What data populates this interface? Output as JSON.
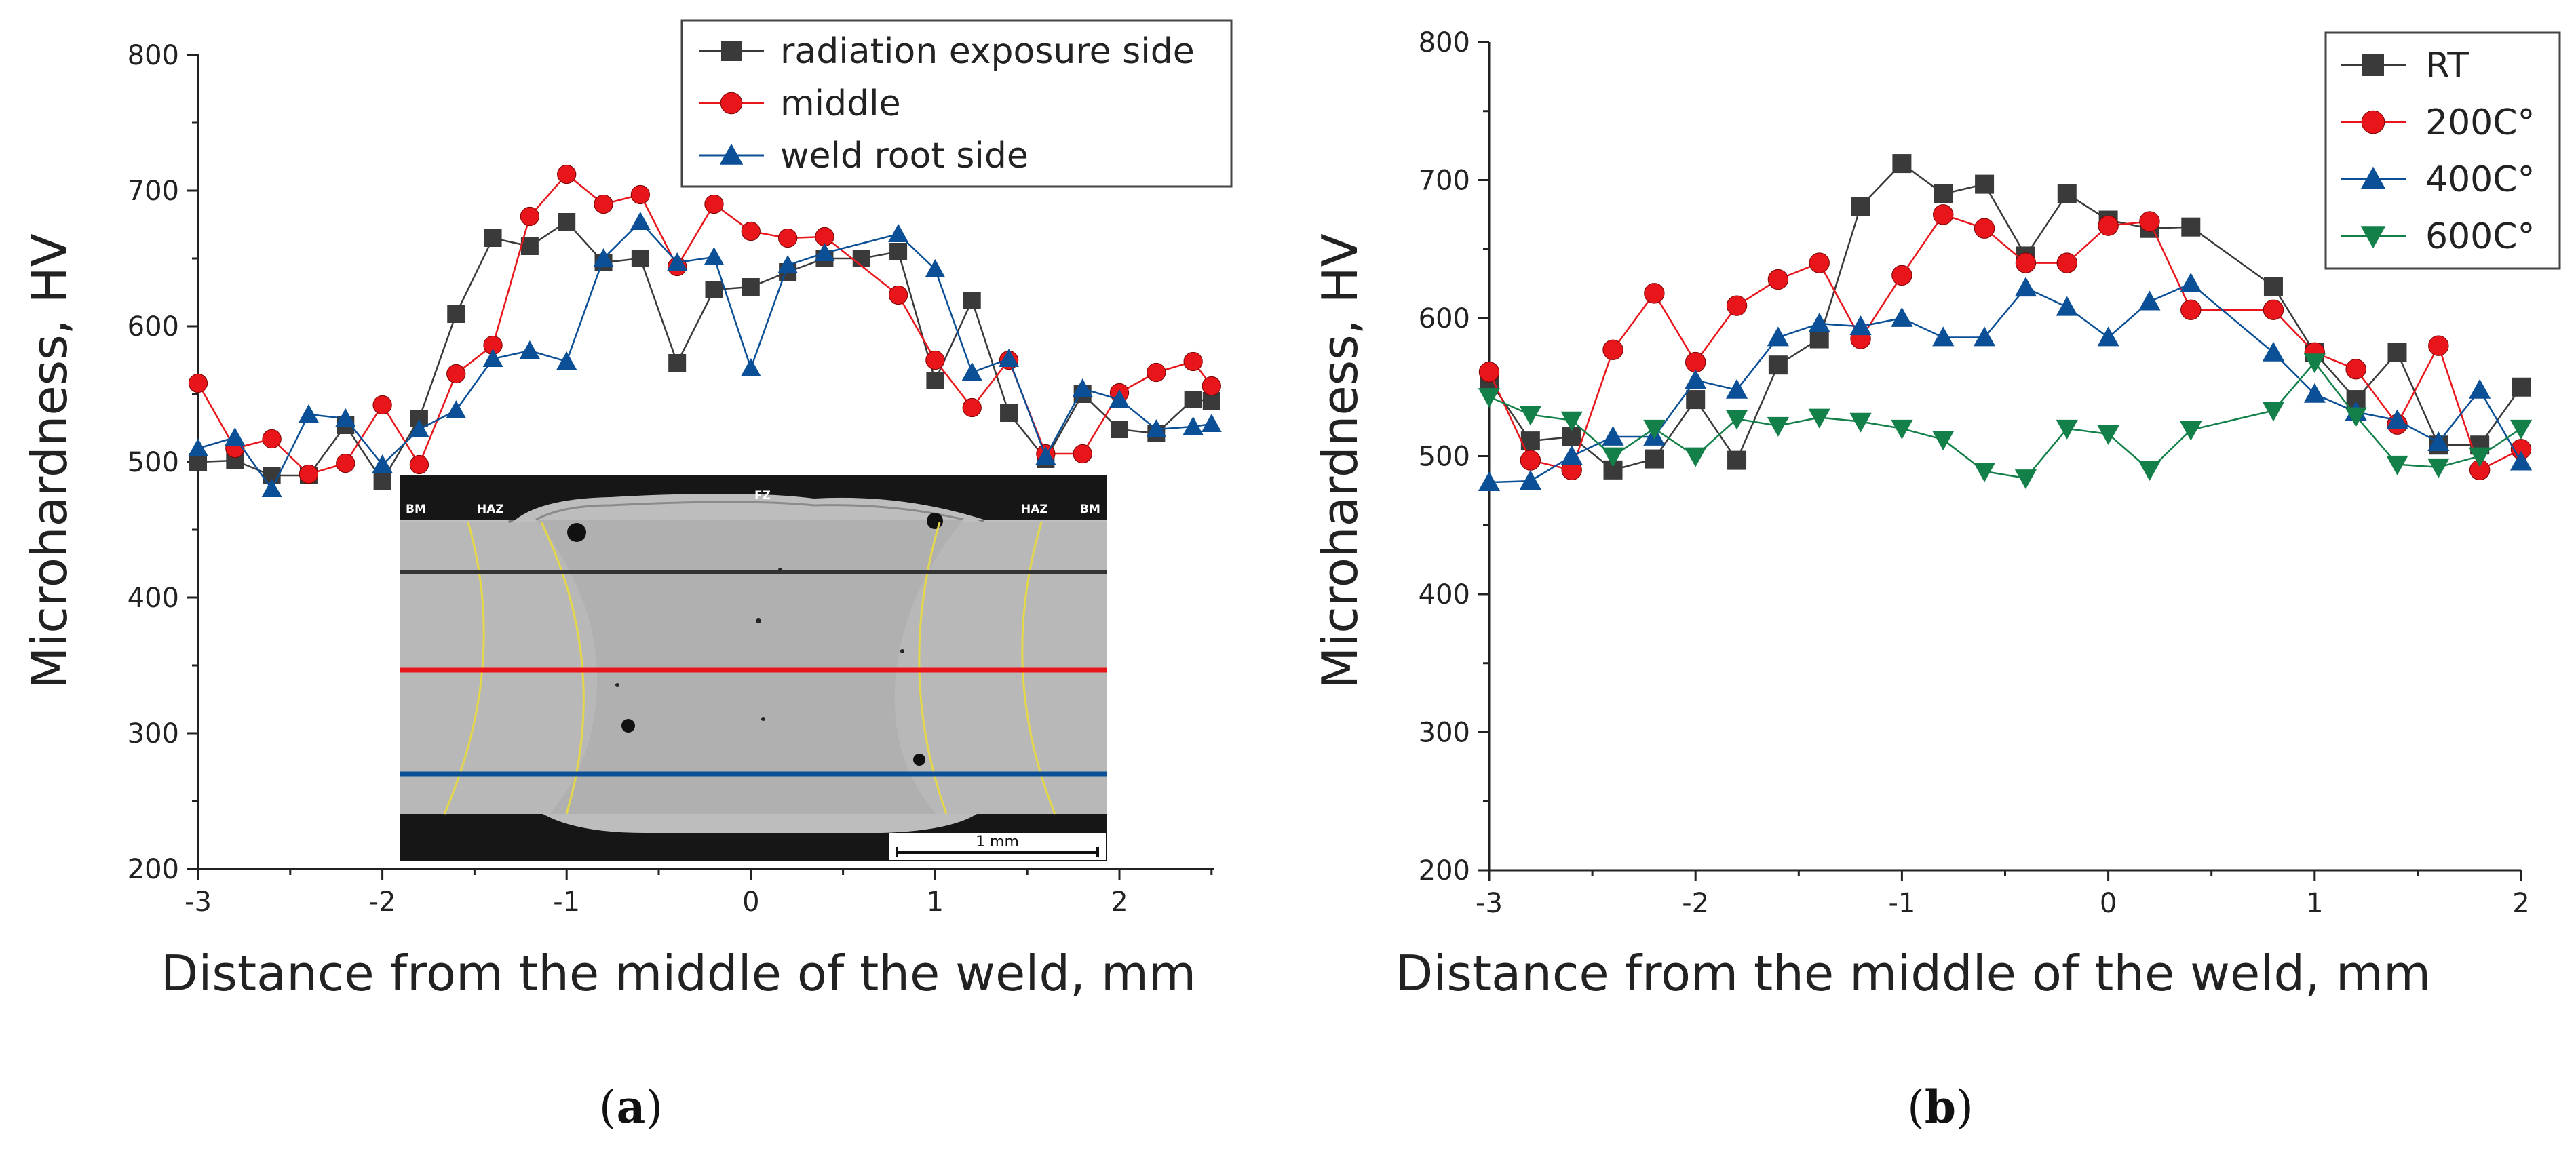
{
  "figure": {
    "panel_labels": [
      "(a)",
      "(b)"
    ]
  },
  "colors": {
    "black": "#3a3a3a",
    "red": "#e8161b",
    "blue": "#0b4f96",
    "green": "#13804a"
  },
  "chart_data": [
    {
      "id": "a",
      "type": "line",
      "panel_label_text": "a",
      "xlabel": "Distance from the middle of the weld, mm",
      "ylabel": "Microhardness, HV",
      "xlim": [
        -3,
        2.5
      ],
      "ylim": [
        200,
        800
      ],
      "xticks": [
        -3,
        -2,
        -1,
        0,
        1,
        2
      ],
      "yticks": [
        200,
        300,
        400,
        500,
        600,
        700,
        800
      ],
      "legend_position": "top-right",
      "series": [
        {
          "name": "radiation exposure side",
          "color": "#3a3a3a",
          "marker": "square",
          "x": [
            -3,
            -2.8,
            -2.6,
            -2.4,
            -2.2,
            -2,
            -1.8,
            -1.6,
            -1.4,
            -1.2,
            -1,
            -0.8,
            -0.6,
            -0.4,
            -0.2,
            0,
            0.2,
            0.4,
            0.6,
            0.8,
            1,
            1.2,
            1.4,
            1.6,
            1.8,
            2,
            2.2,
            2.4,
            2.5
          ],
          "y": [
            500,
            501,
            490,
            490,
            527,
            486,
            532,
            609,
            665,
            659,
            677,
            647,
            650,
            573,
            627,
            629,
            640,
            650,
            650,
            655,
            560,
            619,
            536,
            502,
            550,
            524,
            521,
            546,
            545
          ]
        },
        {
          "name": "middle",
          "color": "#e8161b",
          "marker": "circle",
          "x": [
            -3,
            -2.8,
            -2.6,
            -2.4,
            -2.2,
            -2,
            -1.8,
            -1.6,
            -1.4,
            -1.2,
            -1,
            -0.8,
            -0.6,
            -0.4,
            -0.2,
            0,
            0.2,
            0.4,
            0.8,
            1,
            1.2,
            1.4,
            1.6,
            1.8,
            2,
            2.2,
            2.4,
            2.5
          ],
          "y": [
            558,
            510,
            517,
            491,
            499,
            542,
            498,
            565,
            586,
            681,
            712,
            690,
            697,
            644,
            690,
            670,
            665,
            666,
            623,
            575,
            540,
            575,
            506,
            506,
            551,
            566,
            574,
            556
          ]
        },
        {
          "name": "weld root side",
          "color": "#0b4f96",
          "marker": "triangle-up",
          "x": [
            -3,
            -2.8,
            -2.6,
            -2.4,
            -2.2,
            -2,
            -1.8,
            -1.6,
            -1.4,
            -1.2,
            -1,
            -0.8,
            -0.6,
            -0.4,
            -0.2,
            0,
            0.2,
            0.4,
            0.8,
            1,
            1.2,
            1.4,
            1.6,
            1.8,
            2,
            2.2,
            2.4,
            2.5
          ],
          "y": [
            510,
            518,
            480,
            535,
            532,
            498,
            524,
            538,
            576,
            582,
            574,
            650,
            677,
            647,
            651,
            569,
            645,
            654,
            668,
            642,
            566,
            576,
            504,
            554,
            546,
            524,
            526,
            528
          ]
        }
      ],
      "inset": {
        "description_labels": [
          "BM",
          "HAZ",
          "FZ",
          "HAZ",
          "BM"
        ],
        "scale_bar": "1 mm"
      }
    },
    {
      "id": "b",
      "type": "line",
      "panel_label_text": "b",
      "xlabel": "Distance from the middle of the weld, mm",
      "ylabel": "Microhardness, HV",
      "xlim": [
        -3,
        2
      ],
      "ylim": [
        200,
        800
      ],
      "xticks": [
        -3,
        -2,
        -1,
        0,
        1,
        2
      ],
      "yticks": [
        200,
        300,
        400,
        500,
        600,
        700,
        800
      ],
      "legend_position": "top-right",
      "series": [
        {
          "name": "RT",
          "color": "#3a3a3a",
          "marker": "square",
          "x": [
            -3,
            -2.8,
            -2.6,
            -2.4,
            -2.2,
            -2,
            -1.8,
            -1.6,
            -1.4,
            -1.2,
            -1,
            -0.8,
            -0.6,
            -0.4,
            -0.2,
            0,
            0.2,
            0.4,
            0.8,
            1,
            1.2,
            1.4,
            1.6,
            1.8,
            2
          ],
          "y": [
            555,
            511,
            514,
            490,
            498,
            541,
            497,
            566,
            585,
            681,
            712,
            690,
            697,
            645,
            690,
            671,
            665,
            666,
            623,
            575,
            541,
            575,
            508,
            508,
            550
          ]
        },
        {
          "name": "200C°",
          "color": "#e8161b",
          "marker": "circle",
          "x": [
            -3,
            -2.8,
            -2.6,
            -2.4,
            -2.2,
            -2,
            -1.8,
            -1.6,
            -1.4,
            -1.2,
            -1,
            -0.8,
            -0.6,
            -0.4,
            -0.2,
            0,
            0.2,
            0.4,
            0.8,
            1,
            1.2,
            1.4,
            1.6,
            1.8,
            2
          ],
          "y": [
            561,
            497,
            490,
            577,
            618,
            568,
            609,
            628,
            640,
            585,
            631,
            675,
            665,
            640,
            640,
            667,
            670,
            606,
            606,
            575,
            563,
            523,
            580,
            490,
            505
          ]
        },
        {
          "name": "400C°",
          "color": "#0b4f96",
          "marker": "triangle-up",
          "x": [
            -3,
            -2.8,
            -2.6,
            -2.4,
            -2.2,
            -2,
            -1.8,
            -1.6,
            -1.4,
            -1.2,
            -1,
            -0.8,
            -0.6,
            -0.4,
            -0.2,
            0,
            0.2,
            0.4,
            0.8,
            1,
            1.2,
            1.4,
            1.6,
            1.8,
            2
          ],
          "y": [
            481,
            482,
            500,
            514,
            514,
            555,
            548,
            586,
            596,
            594,
            600,
            586,
            586,
            622,
            608,
            586,
            612,
            625,
            575,
            545,
            532,
            526,
            510,
            548,
            496
          ]
        },
        {
          "name": "600C°",
          "color": "#13804a",
          "marker": "triangle-down",
          "x": [
            -3,
            -2.8,
            -2.6,
            -2.4,
            -2.2,
            -2,
            -1.8,
            -1.6,
            -1.4,
            -1.2,
            -1,
            -0.8,
            -0.6,
            -0.4,
            -0.2,
            0,
            0.2,
            0.4,
            0.8,
            1,
            1.2,
            1.4,
            1.6,
            1.8,
            2
          ],
          "y": [
            543,
            530,
            526,
            500,
            520,
            500,
            527,
            522,
            528,
            525,
            520,
            512,
            489,
            484,
            520,
            516,
            490,
            519,
            533,
            568,
            529,
            494,
            492,
            500,
            520
          ]
        }
      ]
    }
  ]
}
